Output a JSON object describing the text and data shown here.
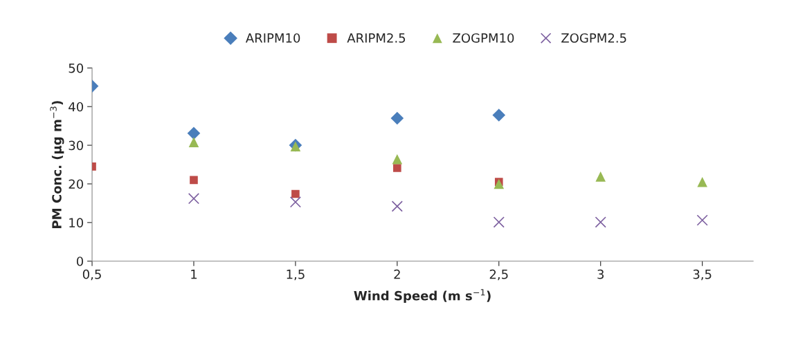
{
  "chart_data": {
    "type": "scatter",
    "xlabel": "Wind Speed (m s$^{−1}$)",
    "ylabel": "PM Conc. (µg m$^{−3}$)",
    "xlim": [
      0.5,
      3.75
    ],
    "xticks": [
      {
        "value": 0.5,
        "label": "0,5"
      },
      1,
      {
        "value": 1.5,
        "label": "1,5"
      },
      2,
      {
        "value": 2.5,
        "label": "2,5"
      },
      3,
      {
        "value": 3.5,
        "label": "3,5"
      }
    ],
    "ylim": [
      0,
      50
    ],
    "yticks": [
      0,
      10,
      20,
      30,
      40,
      50
    ],
    "grid": false,
    "legend": "top",
    "series": [
      {
        "name": "ARIPM10",
        "color": "#4a7ebb",
        "marker": "diamond",
        "x": [
          0.5,
          1,
          1.5,
          2,
          2.5
        ],
        "values": [
          45.3,
          33.1,
          30.0,
          37.0,
          37.8
        ]
      },
      {
        "name": "ARIPM2.5",
        "color": "#be4b48",
        "marker": "square",
        "x": [
          0.5,
          1,
          1.5,
          2,
          2.5
        ],
        "values": [
          24.5,
          21.0,
          17.4,
          24.1,
          20.5
        ]
      },
      {
        "name": "ZOGPM10",
        "color": "#98b954",
        "marker": "triangle",
        "x": [
          1,
          1.5,
          2,
          2.5,
          3,
          3.5
        ],
        "values": [
          30.8,
          29.7,
          26.4,
          20.0,
          21.9,
          20.5
        ]
      },
      {
        "name": "ZOGPM2.5",
        "color": "#7d60a0",
        "marker": "cross",
        "x": [
          1,
          1.5,
          2,
          2.5,
          3,
          3.5
        ],
        "values": [
          16.2,
          15.3,
          14.2,
          10.1,
          10.1,
          10.6
        ]
      }
    ]
  }
}
